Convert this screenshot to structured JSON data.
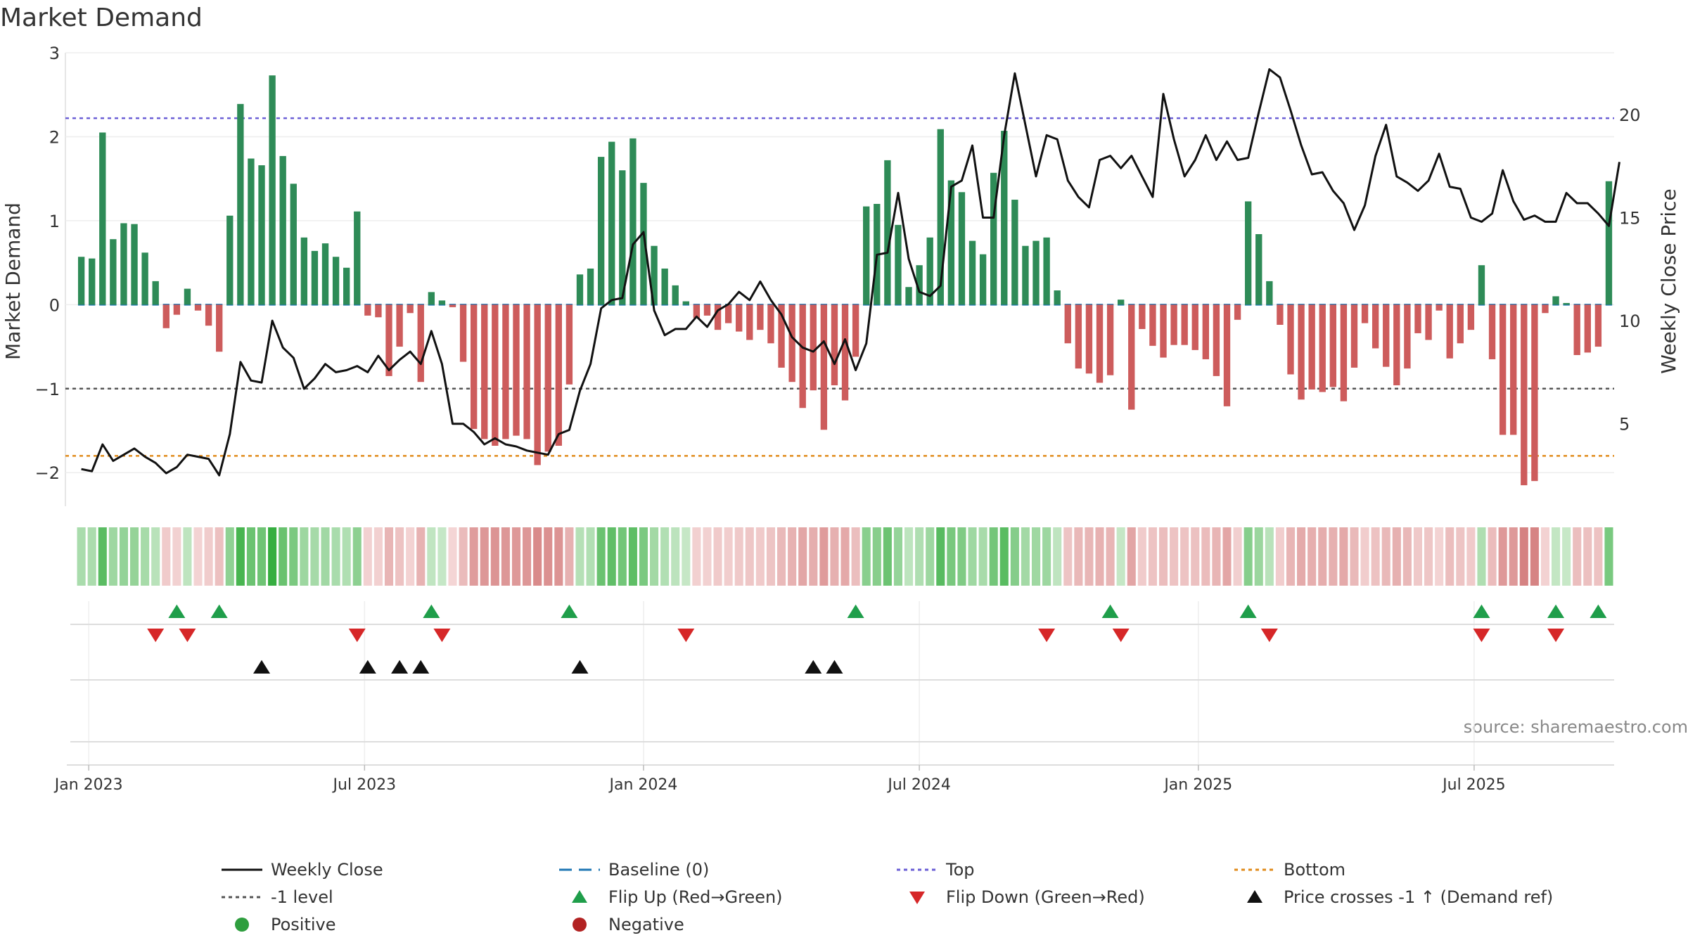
{
  "chart_data": {
    "type": "bar",
    "title": "Market Demand",
    "ylabel": "Market Demand",
    "y2label": "Weekly Close Price",
    "ylim": [
      -2.4,
      3.0
    ],
    "y2lim": [
      1.0,
      23.0
    ],
    "yticks": [
      3,
      2,
      1,
      0,
      -1,
      -2
    ],
    "ytick_labels": [
      "3",
      "2",
      "1",
      "0",
      "−1",
      "−2"
    ],
    "y2ticks": [
      20,
      15,
      10,
      5
    ],
    "y2tick_labels": [
      "20",
      "15",
      "10",
      "5"
    ],
    "x_start": "2023-01-02",
    "x_range_weeks": [
      -1.5,
      144.5
    ],
    "xticks": [
      {
        "week": 0.7,
        "label": "Jan 2023"
      },
      {
        "week": 26.7,
        "label": "Jul 2023"
      },
      {
        "week": 53,
        "label": "Jan 2024"
      },
      {
        "week": 79,
        "label": "Jul 2024"
      },
      {
        "week": 105.3,
        "label": "Jan 2025"
      },
      {
        "week": 131.3,
        "label": "Jul 2025"
      }
    ],
    "reference_lines": {
      "top": 2.22,
      "minus_one": -1.0,
      "bottom": -1.8,
      "baseline": 0
    },
    "source": "source: sharemaestro.com",
    "demand": [
      0.57,
      0.55,
      2.05,
      0.78,
      0.97,
      0.96,
      0.62,
      0.28,
      -0.28,
      -0.12,
      0.19,
      -0.07,
      -0.25,
      -0.56,
      1.06,
      2.39,
      1.74,
      1.66,
      2.73,
      1.77,
      1.44,
      0.8,
      0.64,
      0.73,
      0.57,
      0.44,
      1.11,
      -0.13,
      -0.15,
      -0.85,
      -0.5,
      -0.1,
      -0.92,
      0.15,
      0.05,
      -0.03,
      -0.68,
      -1.48,
      -1.6,
      -1.68,
      -1.6,
      -1.56,
      -1.6,
      -1.91,
      -1.75,
      -1.68,
      -0.95,
      0.36,
      0.43,
      1.76,
      1.94,
      1.6,
      1.98,
      1.45,
      0.7,
      0.43,
      0.23,
      0.04,
      -0.16,
      -0.13,
      -0.3,
      -0.22,
      -0.32,
      -0.42,
      -0.3,
      -0.46,
      -0.75,
      -0.92,
      -1.23,
      -1.02,
      -1.49,
      -0.96,
      -1.14,
      -0.62,
      1.17,
      1.2,
      1.72,
      0.95,
      0.21,
      0.47,
      0.8,
      2.09,
      1.48,
      1.34,
      0.76,
      0.6,
      1.57,
      2.07,
      1.25,
      0.7,
      0.76,
      0.8,
      0.17,
      -0.46,
      -0.76,
      -0.82,
      -0.93,
      -0.84,
      0.06,
      -1.25,
      -0.29,
      -0.49,
      -0.63,
      -0.48,
      -0.48,
      -0.54,
      -0.65,
      -0.85,
      -1.21,
      -0.18,
      1.23,
      0.84,
      0.28,
      -0.24,
      -0.83,
      -1.13,
      -1.01,
      -1.04,
      -0.98,
      -1.15,
      -0.75,
      -0.22,
      -0.52,
      -0.74,
      -0.96,
      -0.76,
      -0.34,
      -0.42,
      -0.07,
      -0.64,
      -0.46,
      -0.3,
      0.47,
      -0.65,
      -1.55,
      -1.55,
      -2.15,
      -2.1,
      -0.1,
      0.1,
      0.02,
      -0.6,
      -0.57,
      -0.5,
      1.47
    ],
    "weekly_close": [
      2.8,
      2.7,
      4.0,
      3.2,
      3.5,
      3.8,
      3.4,
      3.1,
      2.6,
      2.9,
      3.5,
      3.4,
      3.3,
      2.5,
      4.5,
      8.0,
      7.1,
      7.0,
      10.0,
      8.7,
      8.2,
      6.7,
      7.2,
      7.9,
      7.5,
      7.6,
      7.8,
      7.5,
      8.3,
      7.6,
      8.1,
      8.5,
      7.9,
      9.5,
      7.9,
      5.0,
      5.0,
      4.6,
      4.0,
      4.3,
      4.0,
      3.9,
      3.7,
      3.6,
      3.5,
      4.5,
      4.7,
      6.6,
      7.9,
      10.6,
      11.0,
      11.1,
      13.7,
      14.3,
      10.5,
      9.3,
      9.6,
      9.6,
      10.2,
      9.7,
      10.5,
      10.8,
      11.4,
      11.0,
      11.9,
      11.0,
      10.3,
      9.2,
      8.7,
      8.5,
      9.0,
      7.9,
      9.1,
      7.6,
      8.9,
      13.2,
      13.3,
      16.2,
      13.0,
      11.4,
      11.2,
      11.7,
      16.5,
      16.8,
      18.5,
      15.0,
      15.0,
      19.0,
      22.0,
      19.5,
      17.0,
      19.0,
      18.8,
      16.8,
      16.0,
      15.5,
      17.8,
      18.0,
      17.4,
      18.0,
      17.0,
      16.0,
      21.0,
      18.8,
      17.0,
      17.8,
      19.0,
      17.8,
      18.7,
      17.8,
      17.9,
      20.1,
      22.2,
      21.8,
      20.2,
      18.5,
      17.1,
      17.2,
      16.3,
      15.7,
      14.4,
      15.6,
      18.0,
      19.5,
      17.0,
      16.7,
      16.3,
      16.8,
      18.1,
      16.5,
      16.4,
      15.0,
      14.8,
      15.2,
      17.3,
      15.8,
      14.9,
      15.1,
      14.8,
      14.8,
      16.2,
      15.7,
      15.7,
      15.2,
      14.6,
      17.7
    ],
    "flip_up_weeks": [
      9,
      13,
      33,
      46,
      73,
      97,
      110,
      132,
      139,
      143
    ],
    "flip_down_weeks": [
      7,
      10,
      26,
      34,
      57,
      91,
      98,
      112,
      132,
      139
    ],
    "price_cross_weeks": [
      17,
      27,
      30,
      32,
      47,
      69,
      71
    ],
    "legend": [
      {
        "label": "Weekly Close",
        "kind": "line-solid",
        "color": "#111111"
      },
      {
        "label": "Baseline (0)",
        "kind": "line-dashed",
        "color": "#1f77b4"
      },
      {
        "label": "Top",
        "kind": "line-dotted",
        "color": "#6b5fd6"
      },
      {
        "label": "Bottom",
        "kind": "line-dotted",
        "color": "#e08b1b"
      },
      {
        "label": "-1 level",
        "kind": "line-dotted",
        "color": "#555555"
      },
      {
        "label": "Flip Up (Red→Green)",
        "kind": "tri-up",
        "color": "#1f9e4a"
      },
      {
        "label": "Flip Down (Green→Red)",
        "kind": "tri-down",
        "color": "#d62728"
      },
      {
        "label": "Price crosses -1 ↑ (Demand ref)",
        "kind": "tri-up",
        "color": "#111111"
      },
      {
        "label": "Positive",
        "kind": "dot",
        "color": "#2e9e3e"
      },
      {
        "label": "Negative",
        "kind": "dot",
        "color": "#b22222"
      }
    ],
    "colors": {
      "positive_bar": "#2e8b57",
      "negative_bar": "#cd5c5c",
      "price_line": "#111111",
      "top_line": "#6b5fd6",
      "minus_one_line": "#555555",
      "bottom_line": "#e08b1b",
      "baseline_line": "#1f77b4"
    }
  }
}
